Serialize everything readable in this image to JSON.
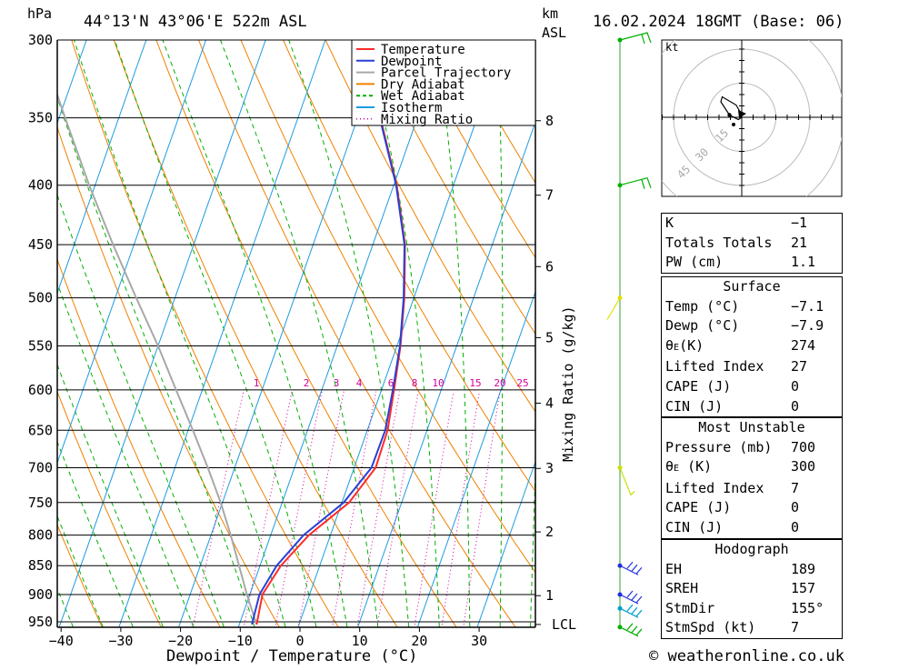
{
  "header": {
    "location": "44°13'N 43°06'E 522m ASL",
    "datetime": "16.02.2024 18GMT (Base: 06)",
    "hpa_label": "hPa",
    "km_label": "km",
    "asl_label": "ASL",
    "copyright": "© weatheronline.co.uk"
  },
  "legend": [
    {
      "label": "Temperature",
      "color": "#ff2a2a",
      "style": "solid"
    },
    {
      "label": "Dewpoint",
      "color": "#2a3fd6",
      "style": "solid"
    },
    {
      "label": "Parcel Trajectory",
      "color": "#a8a8a8",
      "style": "solid"
    },
    {
      "label": "Dry Adiabat",
      "color": "#f08000",
      "style": "solid"
    },
    {
      "label": "Wet Adiabat",
      "color": "#00b000",
      "style": "dashed"
    },
    {
      "label": "Isotherm",
      "color": "#1e9be0",
      "style": "solid"
    },
    {
      "label": "Mixing Ratio",
      "color": "#d0009a",
      "style": "dotted"
    }
  ],
  "chart_data": {
    "type": "line",
    "subtype": "skew-T log-P",
    "xlabel": "Dewpoint / Temperature (°C)",
    "ylabel": "hPa",
    "right_axis_label": "km ASL",
    "mixing_ratio_axis_label": "Mixing Ratio (g/kg)",
    "xlim": [
      -40,
      40
    ],
    "ylim_hpa": [
      300,
      960
    ],
    "x_ticks": [
      "−40",
      "−30",
      "−20",
      "−10",
      "0",
      "10",
      "20",
      "30"
    ],
    "pressure_levels": [
      300,
      350,
      400,
      450,
      500,
      550,
      600,
      650,
      700,
      750,
      800,
      850,
      900,
      950
    ],
    "km_ticks": [
      {
        "label": "8",
        "p": 352
      },
      {
        "label": "7",
        "p": 408
      },
      {
        "label": "6",
        "p": 470
      },
      {
        "label": "5",
        "p": 541
      },
      {
        "label": "4",
        "p": 616
      },
      {
        "label": "3",
        "p": 701
      },
      {
        "label": "2",
        "p": 795
      },
      {
        "label": "1",
        "p": 902
      },
      {
        "label": "LCL",
        "p": 955
      }
    ],
    "mixing_ratio_labels": [
      "1",
      "2",
      "3",
      "4",
      "6",
      "8",
      "10",
      "15",
      "20",
      "25"
    ],
    "series": [
      {
        "name": "Temperature",
        "points": [
          [
            955,
            -7.1
          ],
          [
            900,
            -7.9
          ],
          [
            850,
            -6.5
          ],
          [
            800,
            -3.6
          ],
          [
            750,
            1.2
          ],
          [
            700,
            3.6
          ],
          [
            650,
            3.4
          ],
          [
            600,
            2.1
          ],
          [
            550,
            0.6
          ],
          [
            500,
            -1.6
          ],
          [
            450,
            -4.6
          ],
          [
            400,
            -9.5
          ],
          [
            350,
            -16.2
          ],
          [
            300,
            -25.0
          ]
        ]
      },
      {
        "name": "Dewpoint",
        "points": [
          [
            955,
            -7.9
          ],
          [
            900,
            -8.4
          ],
          [
            850,
            -7.2
          ],
          [
            800,
            -4.5
          ],
          [
            750,
            0.3
          ],
          [
            700,
            2.9
          ],
          [
            650,
            3.0
          ],
          [
            600,
            1.9
          ],
          [
            550,
            0.5
          ],
          [
            500,
            -1.7
          ],
          [
            450,
            -4.7
          ],
          [
            400,
            -9.6
          ],
          [
            350,
            -16.3
          ],
          [
            300,
            -25.1
          ]
        ]
      },
      {
        "name": "Parcel Trajectory",
        "points": [
          [
            955,
            -7.1
          ],
          [
            900,
            -10.5
          ],
          [
            850,
            -13.5
          ],
          [
            800,
            -16.7
          ],
          [
            750,
            -20.3
          ],
          [
            700,
            -24.5
          ],
          [
            650,
            -29.2
          ],
          [
            600,
            -34.4
          ],
          [
            550,
            -40.0
          ],
          [
            500,
            -46.5
          ],
          [
            450,
            -53.5
          ],
          [
            400,
            -61.0
          ],
          [
            350,
            -69.0
          ],
          [
            300,
            -78.0
          ]
        ]
      }
    ],
    "hodograph": {
      "unit_label": "kt",
      "ring_labels": [
        "15",
        "30",
        "45"
      ],
      "points_kt": [
        [
          0,
          0
        ],
        [
          -1.5,
          -1.0
        ],
        [
          -5.4,
          1.0
        ],
        [
          -9.2,
          6.8
        ],
        [
          -8.6,
          9.0
        ],
        [
          -2.5,
          5.4
        ],
        [
          -0.4,
          1.8
        ]
      ]
    }
  },
  "indices": {
    "top": [
      {
        "label": "K",
        "value": "−1"
      },
      {
        "label": "Totals Totals",
        "value": "21"
      },
      {
        "label": "PW (cm)",
        "value": "1.1"
      }
    ],
    "surface": {
      "title": "Surface",
      "rows": [
        {
          "label": "Temp (°C)",
          "value": "−7.1"
        },
        {
          "label": "Dewp (°C)",
          "value": "−7.9"
        },
        {
          "label": "θ",
          "sub": "E",
          "after": "(K)",
          "value": "274"
        },
        {
          "label": "Lifted Index",
          "value": "27"
        },
        {
          "label": "CAPE (J)",
          "value": "0"
        },
        {
          "label": "CIN (J)",
          "value": "0"
        }
      ]
    },
    "most_unstable": {
      "title": "Most Unstable",
      "rows": [
        {
          "label": "Pressure (mb)",
          "value": "700"
        },
        {
          "label": "θ",
          "sub": "E",
          "after": " (K)",
          "value": "300"
        },
        {
          "label": "Lifted Index",
          "value": "7"
        },
        {
          "label": "CAPE (J)",
          "value": "0"
        },
        {
          "label": "CIN (J)",
          "value": "0"
        }
      ]
    },
    "hodograph": {
      "title": "Hodograph",
      "rows": [
        {
          "label": "EH",
          "value": "189"
        },
        {
          "label": "SREH",
          "value": "157"
        },
        {
          "label": "StmDir",
          "value": "155°"
        },
        {
          "label": "StmSpd (kt)",
          "value": "7"
        }
      ]
    }
  },
  "wind_profile": {
    "barbs": [
      {
        "p": 300,
        "color": "#00b000"
      },
      {
        "p": 400,
        "color": "#00b000"
      },
      {
        "p": 500,
        "color": "#e0e000"
      },
      {
        "p": 700,
        "color": "#c8e000"
      },
      {
        "p": 850,
        "color": "#2030e0"
      },
      {
        "p": 900,
        "color": "#2030e0"
      },
      {
        "p": 925,
        "color": "#00a0d0"
      },
      {
        "p": 960,
        "color": "#00b000"
      }
    ]
  }
}
